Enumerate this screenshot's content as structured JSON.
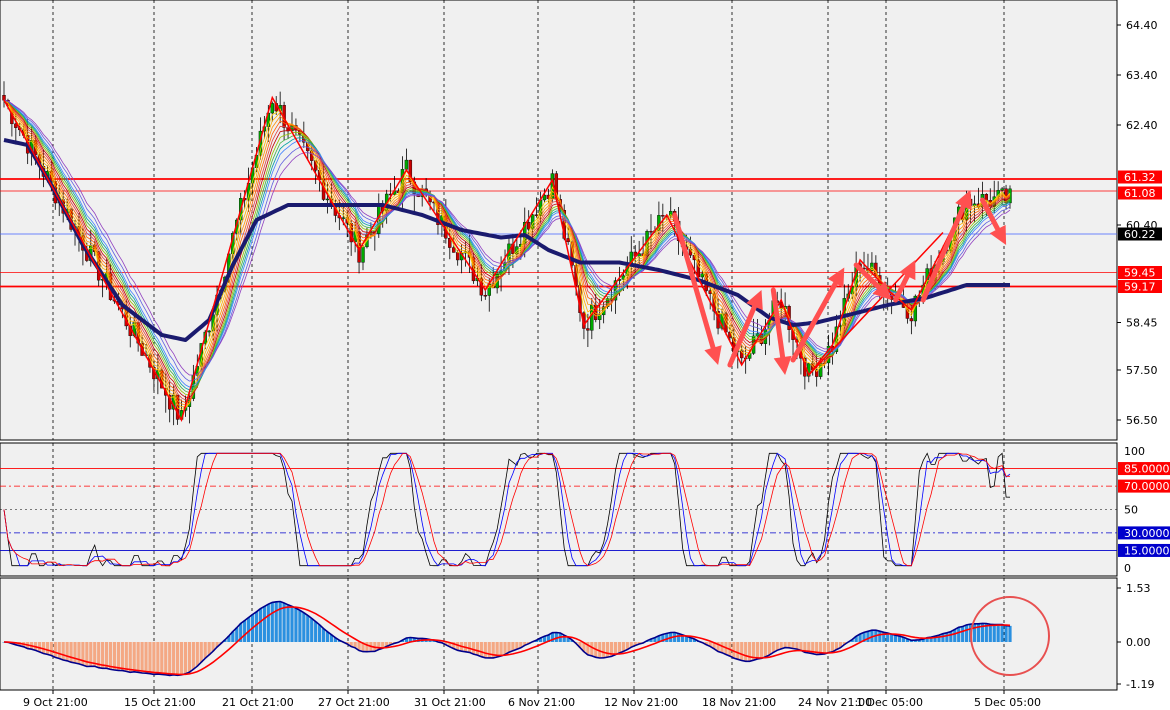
{
  "chart_data": [
    {
      "panel": "price",
      "type": "candlestick",
      "colors": {
        "background": "#f0f0f0",
        "bull": "#00aa00",
        "bear": "#cc0000",
        "ribbon_slow": "#1a1a6e",
        "levels": "#ff0000",
        "current": "#4060ff",
        "arrows": "#ff5050",
        "zigzag": "#ff0000"
      },
      "yticks": [
        "64.40",
        "63.40",
        "62.40",
        "61.32",
        "61.08",
        "60.40",
        "60.22",
        "59.45",
        "59.17",
        "58.45",
        "57.50",
        "56.50"
      ],
      "ylim": [
        56.1,
        64.9
      ],
      "levels": [
        61.32,
        61.08,
        59.45,
        59.17
      ],
      "current_price": 60.22,
      "slow_ma": [
        [
          0,
          62.1
        ],
        [
          6,
          62.0
        ],
        [
          12,
          61.2
        ],
        [
          20,
          60.0
        ],
        [
          30,
          58.8
        ],
        [
          40,
          58.2
        ],
        [
          46,
          58.1
        ],
        [
          52,
          58.5
        ],
        [
          58,
          59.6
        ],
        [
          64,
          60.5
        ],
        [
          72,
          60.8
        ],
        [
          84,
          60.8
        ],
        [
          96,
          60.8
        ],
        [
          106,
          60.6
        ],
        [
          116,
          60.3
        ],
        [
          126,
          60.15
        ],
        [
          132,
          60.2
        ],
        [
          138,
          59.9
        ],
        [
          146,
          59.65
        ],
        [
          156,
          59.65
        ],
        [
          166,
          59.5
        ],
        [
          176,
          59.3
        ],
        [
          186,
          59.0
        ],
        [
          194,
          58.55
        ],
        [
          200,
          58.4
        ],
        [
          206,
          58.45
        ],
        [
          214,
          58.6
        ],
        [
          224,
          58.8
        ],
        [
          234,
          58.95
        ],
        [
          244,
          59.2
        ]
      ],
      "zigzag": [
        [
          0,
          62.9
        ],
        [
          45,
          56.5
        ],
        [
          68,
          62.95
        ],
        [
          90,
          59.9
        ],
        [
          102,
          61.5
        ],
        [
          122,
          59.1
        ],
        [
          139,
          61.3
        ],
        [
          147,
          58.4
        ],
        [
          168,
          60.6
        ],
        [
          187,
          57.6
        ],
        [
          197,
          58.9
        ],
        [
          204,
          57.4
        ],
        [
          210,
          58.0
        ],
        [
          217,
          59.7
        ],
        [
          224,
          59.1
        ],
        [
          230,
          58.7
        ],
        [
          244,
          60.9
        ]
      ],
      "up_arrows_line": [
        [
          204,
          57.4
        ],
        [
          238,
          60.25
        ]
      ],
      "arrows": [
        {
          "from": [
            170,
            60.6
          ],
          "to": [
            181,
            57.6
          ]
        },
        {
          "from": [
            184,
            57.6
          ],
          "to": [
            192,
            59.1
          ]
        },
        {
          "from": [
            195,
            59.1
          ],
          "to": [
            198,
            57.4
          ]
        },
        {
          "from": [
            200,
            57.7
          ],
          "to": [
            213,
            59.55
          ]
        },
        {
          "from": [
            216,
            59.6
          ],
          "to": [
            225,
            58.9
          ]
        },
        {
          "from": [
            226,
            58.9
          ],
          "to": [
            231,
            59.7
          ]
        },
        {
          "from": [
            233,
            58.9
          ],
          "to": [
            245,
            61.1
          ]
        },
        {
          "from": [
            248,
            60.9
          ],
          "to": [
            254,
            60.0
          ]
        }
      ]
    },
    {
      "panel": "stochastic",
      "type": "line",
      "levels": [
        "85.0000",
        "70.0000",
        "30.0000",
        "15.0000"
      ],
      "level_values": [
        85,
        70,
        30,
        15
      ],
      "axis_labels": [
        "100",
        "50",
        "0"
      ],
      "ylim": [
        0,
        100
      ]
    },
    {
      "panel": "macd",
      "type": "bar",
      "axis_labels": [
        "1.53",
        "0.00",
        "-1.19"
      ],
      "ylim": [
        -1.19,
        1.53
      ],
      "colors": {
        "pos": "#2a90e0",
        "neg": "#f4a884",
        "main": "#00008b",
        "signal": "#ff0000"
      }
    }
  ],
  "x_labels": [
    "9 Oct 21:00",
    "15 Oct 21:00",
    "21 Oct 21:00",
    "27 Oct 21:00",
    "31 Oct 21:00",
    "6 Nov 21:00",
    "12 Nov 21:00",
    "18 Nov 21:00",
    "24 Nov 21:00",
    "1 Dec 05:00",
    "5 Dec 05:00"
  ]
}
